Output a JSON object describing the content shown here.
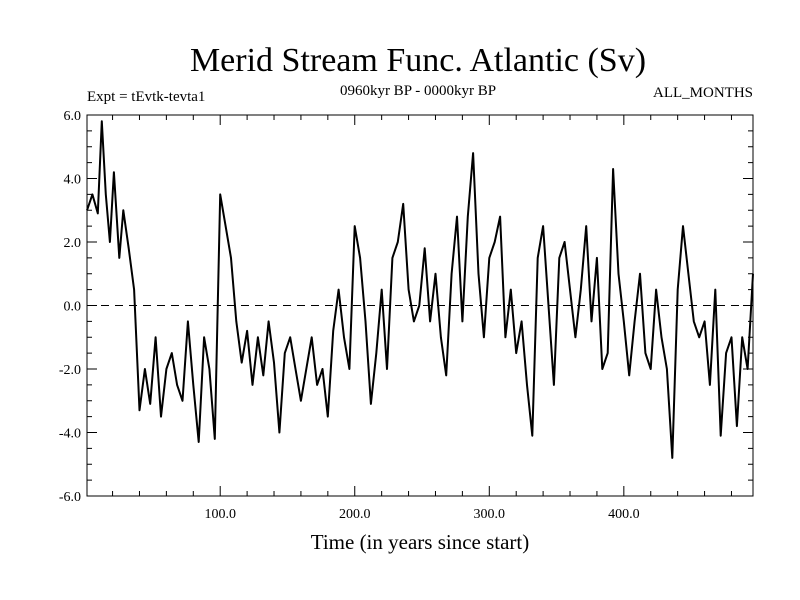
{
  "chart_data": {
    "type": "line",
    "title": "Merid Stream Func. Atlantic (Sv)",
    "subtitle_left": "Expt = tEvtk-tevta1",
    "subtitle_center": "0960kyr BP - 0000kyr BP",
    "subtitle_right": "ALL_MONTHS",
    "xlabel": "Time (in years since start)",
    "ylabel": "",
    "xlim": [
      1,
      496
    ],
    "ylim": [
      -6,
      6
    ],
    "x_ticks": [
      100,
      200,
      300,
      400
    ],
    "x_tick_labels": [
      "100.0",
      "200.0",
      "300.0",
      "400.0"
    ],
    "y_ticks": [
      -6,
      -4,
      -2,
      0,
      2,
      4,
      6
    ],
    "y_tick_labels": [
      "-6.0",
      "-4.0",
      "-2.0",
      "0.0",
      "2.0",
      "4.0",
      "6.0"
    ],
    "reference_line": {
      "y": 0,
      "style": "dashed"
    },
    "series": [
      {
        "name": "Merid Stream Func. Atlantic",
        "x": [
          1,
          5,
          9,
          12,
          15,
          18,
          21,
          25,
          28,
          32,
          36,
          40,
          44,
          48,
          52,
          56,
          60,
          64,
          68,
          72,
          76,
          80,
          84,
          88,
          92,
          96,
          100,
          104,
          108,
          112,
          116,
          120,
          124,
          128,
          132,
          136,
          140,
          144,
          148,
          152,
          156,
          160,
          164,
          168,
          172,
          176,
          180,
          184,
          188,
          192,
          196,
          200,
          204,
          208,
          212,
          216,
          220,
          224,
          228,
          232,
          236,
          240,
          244,
          248,
          252,
          256,
          260,
          264,
          268,
          272,
          276,
          280,
          284,
          288,
          292,
          296,
          300,
          304,
          308,
          312,
          316,
          320,
          324,
          328,
          332,
          336,
          340,
          344,
          348,
          352,
          356,
          360,
          364,
          368,
          372,
          376,
          380,
          384,
          388,
          392,
          396,
          400,
          404,
          408,
          412,
          416,
          420,
          424,
          428,
          432,
          436,
          440,
          444,
          448,
          452,
          456,
          460,
          464,
          468,
          472,
          476,
          480,
          484,
          488,
          492,
          496
        ],
        "values": [
          3.0,
          3.5,
          2.9,
          5.8,
          3.5,
          2.0,
          4.2,
          1.5,
          3.0,
          1.8,
          0.5,
          -3.3,
          -2.0,
          -3.1,
          -1.0,
          -3.5,
          -2.0,
          -1.5,
          -2.5,
          -3.0,
          -0.5,
          -2.5,
          -4.3,
          -1.0,
          -2.0,
          -4.2,
          3.5,
          2.5,
          1.5,
          -0.5,
          -1.8,
          -0.8,
          -2.5,
          -1.0,
          -2.2,
          -0.5,
          -1.8,
          -4.0,
          -1.5,
          -1.0,
          -2.0,
          -3.0,
          -2.0,
          -1.0,
          -2.5,
          -2.0,
          -3.5,
          -0.8,
          0.5,
          -1.0,
          -2.0,
          2.5,
          1.5,
          -0.5,
          -3.1,
          -1.5,
          0.5,
          -2.0,
          1.5,
          2.0,
          3.2,
          0.5,
          -0.5,
          0.0,
          1.8,
          -0.5,
          1.0,
          -1.0,
          -2.2,
          1.0,
          2.8,
          -0.5,
          2.8,
          4.8,
          1.0,
          -1.0,
          1.5,
          2.0,
          2.8,
          -1.0,
          0.5,
          -1.5,
          -0.5,
          -2.5,
          -4.1,
          1.5,
          2.5,
          0.0,
          -2.5,
          1.5,
          2.0,
          0.5,
          -1.0,
          0.5,
          2.5,
          -0.5,
          1.5,
          -2.0,
          -1.5,
          4.3,
          1.0,
          -0.5,
          -2.2,
          -0.5,
          1.0,
          -1.5,
          -2.0,
          0.5,
          -1.0,
          -2.0,
          -4.8,
          0.5,
          2.5,
          1.0,
          -0.5,
          -1.0,
          -0.5,
          -2.5,
          0.5,
          -4.1,
          -1.5,
          -1.0,
          -3.8,
          -1.0,
          -2.0,
          1.0
        ]
      }
    ]
  }
}
